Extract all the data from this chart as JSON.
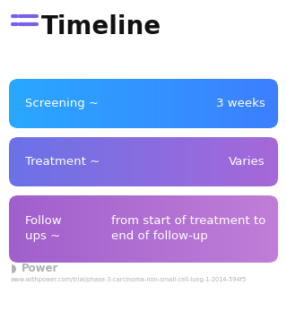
{
  "title": "Timeline",
  "title_fontsize": 20,
  "title_color": "#111111",
  "background_color": "#ffffff",
  "icon_color": "#7B5EE8",
  "rows": [
    {
      "label_left": "Screening ~",
      "label_right": "3 weeks",
      "color_left": "#29a8ff",
      "color_right": "#3d7fff",
      "text_color": "#ffffff",
      "multiline": false,
      "left_text": "Screening ~",
      "right_text": "3 weeks"
    },
    {
      "label_left": "Treatment ~",
      "label_right": "Varies",
      "color_left": "#6b72e8",
      "color_right": "#a668d8",
      "text_color": "#ffffff",
      "multiline": false,
      "left_text": "Treatment ~",
      "right_text": "Varies"
    },
    {
      "label_left": "Follow\nups ~",
      "label_right": "from start of treatment to\nend of follow-up",
      "color_left": "#a060cc",
      "color_right": "#c07ed8",
      "text_color": "#ffffff",
      "multiline": true,
      "left_text": "Follow\nups ~",
      "right_text": "from start of treatment to\nend of follow-up"
    }
  ],
  "footer_text": "Power",
  "footer_url": "www.withpower.com/trial/phase-3-carcinoma-non-small-cell-lung-1-2014-594f5",
  "footer_color": "#b0b0b0"
}
